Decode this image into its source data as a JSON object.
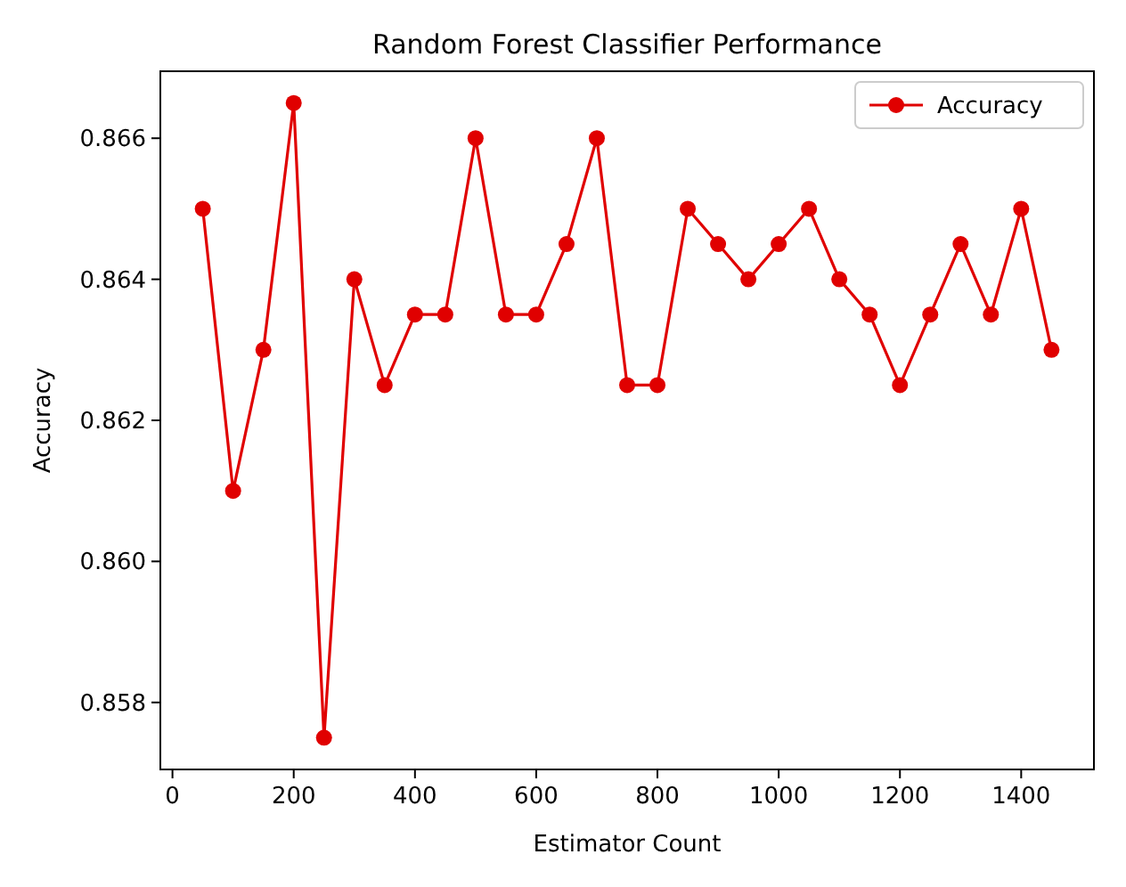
{
  "chart_data": {
    "type": "line",
    "title": "Random Forest Classifier Performance",
    "xlabel": "Estimator Count",
    "ylabel": "Accuracy",
    "x": [
      50,
      100,
      150,
      200,
      250,
      300,
      350,
      400,
      450,
      500,
      550,
      600,
      650,
      700,
      750,
      800,
      850,
      900,
      950,
      1000,
      1050,
      1100,
      1150,
      1200,
      1250,
      1300,
      1350,
      1400,
      1450
    ],
    "series": [
      {
        "name": "Accuracy",
        "color": "#e00000",
        "values": [
          0.865,
          0.861,
          0.863,
          0.8665,
          0.8575,
          0.864,
          0.8625,
          0.8635,
          0.8635,
          0.866,
          0.8635,
          0.8635,
          0.8645,
          0.866,
          0.8625,
          0.8625,
          0.865,
          0.8645,
          0.864,
          0.8645,
          0.865,
          0.864,
          0.8635,
          0.8625,
          0.8635,
          0.8645,
          0.8635,
          0.865,
          0.863
        ]
      }
    ],
    "xlim": [
      -20,
      1520
    ],
    "xticks": [
      0,
      200,
      400,
      600,
      800,
      1000,
      1200,
      1400
    ],
    "ylim": [
      0.85705,
      0.86695
    ],
    "yticks": [
      {
        "value": 0.858,
        "label": "0.858"
      },
      {
        "value": 0.86,
        "label": "0.860"
      },
      {
        "value": 0.862,
        "label": "0.862"
      },
      {
        "value": 0.864,
        "label": "0.864"
      },
      {
        "value": 0.866,
        "label": "0.866"
      }
    ],
    "marker": "circle",
    "line_style": "solid",
    "legend": "top right",
    "grid": false
  }
}
